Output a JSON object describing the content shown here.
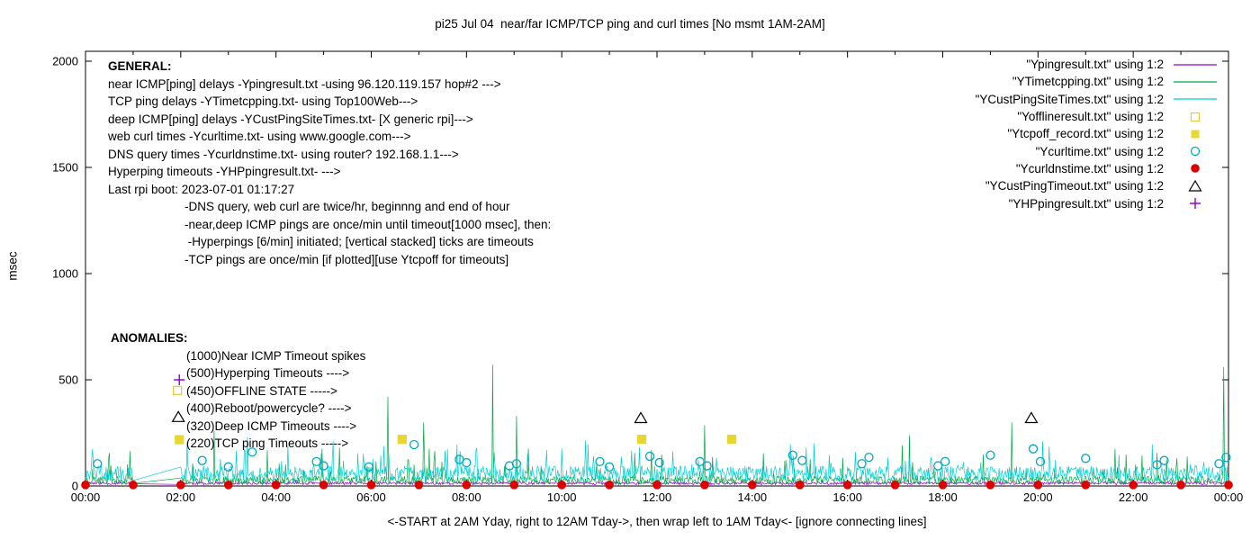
{
  "chart_data": {
    "type": "line",
    "title": "pi25 Jul 04  near/far ICMP/TCP ping and curl times [No msmt 1AM-2AM]",
    "xlabel": "<-START at 2AM Yday, right to 12AM Tday->, then wrap left to 1AM Tday<- [ignore connecting lines]",
    "ylabel": "msec",
    "ylim": [
      0,
      2000
    ],
    "y_ticks": [
      0,
      500,
      1000,
      1500,
      2000
    ],
    "x_tick_labels": [
      "00:00",
      "02:00",
      "04:00",
      "06:00",
      "08:00",
      "10:00",
      "12:00",
      "14:00",
      "16:00",
      "18:00",
      "20:00",
      "22:00",
      "00:00"
    ],
    "x_hours_span": 24,
    "no_measurement_gap_hours": [
      1,
      2
    ],
    "grid": false,
    "legend_position": "top-right",
    "line_series": [
      {
        "name": "Ypingresult",
        "color": "#9400D3",
        "base": 6,
        "noise": 14,
        "spike_prob": 0.006,
        "spike_max": 60,
        "seed": 11,
        "big_spikes": []
      },
      {
        "name": "YTimetcpping",
        "color": "#00A843",
        "base": 10,
        "noise": 36,
        "spike_prob": 0.05,
        "spike_max": 150,
        "seed": 23,
        "big_spikes": [
          [
            2.7,
            260
          ],
          [
            6.35,
            420
          ],
          [
            7.1,
            300
          ],
          [
            8.55,
            570
          ],
          [
            9.05,
            330
          ],
          [
            13.0,
            285
          ],
          [
            17.3,
            240
          ],
          [
            19.45,
            300
          ],
          [
            23.9,
            560
          ]
        ]
      },
      {
        "name": "YCustPingSiteTimes",
        "color": "#00CED1",
        "base": 22,
        "noise": 72,
        "spike_prob": 0.07,
        "spike_max": 130,
        "seed": 47,
        "big_spikes": [
          [
            3.4,
            230
          ],
          [
            5.2,
            210
          ],
          [
            10.5,
            215
          ],
          [
            15.3,
            200
          ],
          [
            20.1,
            210
          ],
          [
            22.4,
            195
          ]
        ]
      }
    ],
    "scatter_series": {
      "curl_circles": {
        "name": "Ycurltime",
        "marker": "open-circle",
        "color": "#00A8C0",
        "points": [
          [
            0.25,
            105
          ],
          [
            2.45,
            120
          ],
          [
            3.0,
            90
          ],
          [
            3.5,
            160
          ],
          [
            4.85,
            115
          ],
          [
            5.0,
            95
          ],
          [
            5.95,
            90
          ],
          [
            6.9,
            195
          ],
          [
            7.85,
            125
          ],
          [
            8.0,
            110
          ],
          [
            8.9,
            95
          ],
          [
            9.05,
            105
          ],
          [
            10.8,
            115
          ],
          [
            11.0,
            90
          ],
          [
            11.85,
            140
          ],
          [
            12.05,
            110
          ],
          [
            12.9,
            115
          ],
          [
            13.05,
            95
          ],
          [
            14.85,
            145
          ],
          [
            15.05,
            120
          ],
          [
            16.3,
            105
          ],
          [
            16.45,
            135
          ],
          [
            17.9,
            95
          ],
          [
            18.05,
            115
          ],
          [
            19.0,
            145
          ],
          [
            19.9,
            175
          ],
          [
            20.05,
            115
          ],
          [
            21.0,
            130
          ],
          [
            22.5,
            100
          ],
          [
            22.65,
            120
          ],
          [
            23.8,
            105
          ],
          [
            23.95,
            135
          ]
        ]
      },
      "dns_dots": {
        "name": "Ycurldnstime",
        "marker": "filled-circle",
        "color": "#DD0000",
        "value": 5,
        "hours": [
          0,
          1,
          2,
          3,
          4,
          5,
          6,
          7,
          8,
          9,
          10,
          11,
          12,
          13,
          14,
          15,
          16,
          17,
          18,
          19,
          20,
          21,
          22,
          23,
          24
        ]
      },
      "tcpoff_squares": {
        "name": "Ytcpoff_record",
        "marker": "filled-square",
        "color": "#E8D733",
        "points": [
          [
            6.65,
            220
          ],
          [
            11.68,
            220
          ],
          [
            13.57,
            220
          ]
        ]
      },
      "timeout_triangles": {
        "name": "YCustPingTimeout",
        "marker": "open-triangle",
        "color": "#000000",
        "points": [
          [
            11.66,
            320
          ],
          [
            19.86,
            320
          ]
        ]
      },
      "anomaly_example_markers": {
        "plus": {
          "color": "#9400D3",
          "point": [
            1.97,
            500
          ]
        },
        "open_square": {
          "color": "#E8C93B",
          "point": [
            1.93,
            450
          ]
        },
        "open_triangle": {
          "color": "#000000",
          "point": [
            1.95,
            325
          ]
        },
        "filled_square": {
          "color": "#E8D733",
          "point": [
            1.97,
            218
          ]
        }
      }
    }
  },
  "annotations": {
    "general": {
      "heading": "GENERAL:",
      "lines": [
        "near ICMP[ping] delays -Ypingresult.txt -using 96.120.119.157 hop#2 --->",
        "TCP ping delays -YTimetcpping.txt- using Top100Web--->",
        "deep ICMP[ping] delays -YCustPingSiteTimes.txt- [X generic rpi]--->",
        "web curl times -Ycurltime.txt- using www.google.com--->",
        "DNS query times -Ycurldnstime.txt- using router? 192.168.1.1--->",
        "Hyperping timeouts -YHPpingresult.txt- --->",
        "Last rpi boot: 2023-07-01 01:17:27"
      ],
      "notes": [
        "-DNS query, web curl are twice/hr, beginnng and end of hour",
        "-near,deep ICMP pings are once/min until timeout[1000 msec], then:",
        " -Hyperpings [6/min] initiated; [vertical stacked] ticks are timeouts",
        "-TCP pings are once/min [if plotted][use Ytcpoff for timeouts]"
      ]
    },
    "anomalies": {
      "heading": "ANOMALIES:",
      "lines": [
        "(1000)Near ICMP Timeout spikes",
        "(500)Hyperping Timeouts ---->",
        "(450)OFFLINE STATE ----->",
        "(400)Reboot/powercycle? ---->",
        "(320)Deep ICMP Timeouts ---->",
        "(220)TCP ping Timeouts ----->"
      ]
    }
  },
  "legend": {
    "items": [
      {
        "label": "\"Ypingresult.txt\" using 1:2",
        "marker": "line",
        "color": "#9400D3"
      },
      {
        "label": "\"YTimetcpping.txt\" using 1:2",
        "marker": "line",
        "color": "#00A843"
      },
      {
        "label": "\"YCustPingSiteTimes.txt\" using 1:2",
        "marker": "line",
        "color": "#00CED1"
      },
      {
        "label": "\"Yofflineresult.txt\" using 1:2",
        "marker": "open-square",
        "color": "#E8C93B"
      },
      {
        "label": "\"Ytcpoff_record.txt\" using 1:2",
        "marker": "filled-square",
        "color": "#E8D733"
      },
      {
        "label": "\"Ycurltime.txt\" using 1:2",
        "marker": "open-circle",
        "color": "#00A8C0"
      },
      {
        "label": "\"Ycurldnstime.txt\" using 1:2",
        "marker": "filled-circle",
        "color": "#DD0000"
      },
      {
        "label": "\"YCustPingTimeout.txt\" using 1:2",
        "marker": "open-triangle",
        "color": "#000000"
      },
      {
        "label": "\"YHPpingresult.txt\" using 1:2",
        "marker": "plus",
        "color": "#9400D3"
      }
    ]
  }
}
